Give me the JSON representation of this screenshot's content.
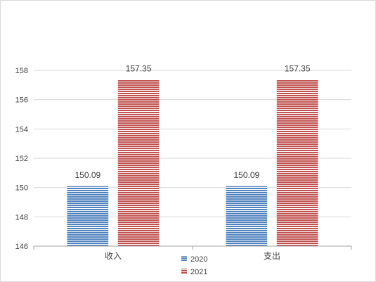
{
  "chart_data": {
    "type": "bar",
    "categories": [
      "收入",
      "支出"
    ],
    "series": [
      {
        "name": "2020",
        "values": [
          150.09,
          150.09
        ],
        "color": "#4f81bd",
        "labels": [
          "150.09",
          "150.09"
        ]
      },
      {
        "name": "2021",
        "values": [
          157.35,
          157.35
        ],
        "color": "#c0504d",
        "labels": [
          "157.35",
          "157.35"
        ]
      }
    ],
    "yticks": [
      "146",
      "148",
      "150",
      "152",
      "154",
      "156",
      "158"
    ],
    "ylim": [
      146,
      158
    ],
    "grid": true,
    "legend_position": "bottom",
    "bar_pattern": "horizontal-stripes"
  }
}
